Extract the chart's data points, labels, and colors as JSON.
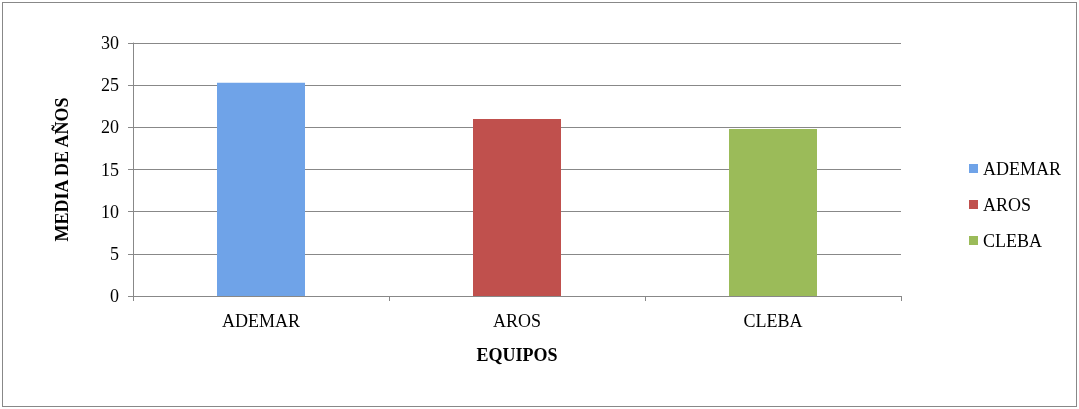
{
  "chart_data": {
    "type": "bar",
    "xlabel": "EQUIPOS",
    "ylabel": "MEDIA DE AÑOS",
    "categories": [
      "ADEMAR",
      "AROS",
      "CLEBA"
    ],
    "series": [
      {
        "name": "ADEMAR",
        "color": "#6fa3e8",
        "values": [
          25.3,
          null,
          null
        ]
      },
      {
        "name": "AROS",
        "color": "#c0504d",
        "values": [
          null,
          21.0,
          null
        ]
      },
      {
        "name": "CLEBA",
        "color": "#9bbb59",
        "values": [
          null,
          null,
          19.8
        ]
      }
    ],
    "ylim": [
      0,
      30
    ],
    "yticks": [
      0,
      5,
      10,
      15,
      20,
      25,
      30
    ],
    "grid": "y",
    "legend": "right"
  }
}
